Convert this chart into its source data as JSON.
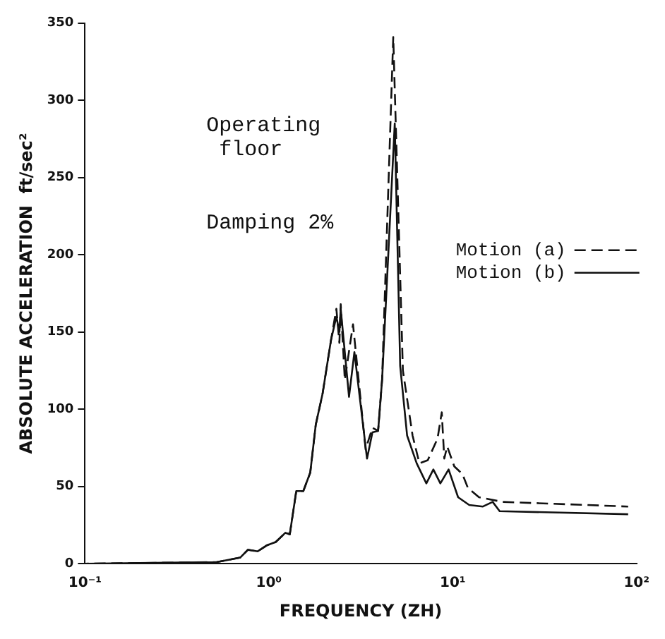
{
  "chart_data": {
    "type": "line",
    "xlabel": "FREQUENCY (ZH)",
    "ylabel": "ABSOLUTE ACCELERATION  ft/sec²",
    "annotations": [
      "Operating floor",
      "Damping 2%"
    ],
    "log": "x",
    "grid": false,
    "legend": "right",
    "marker": "none",
    "xlim": [
      0.1,
      100
    ],
    "xticks": [
      {
        "value": 0.1,
        "label": "10⁻¹"
      },
      {
        "value": 1,
        "label": "10⁰"
      },
      {
        "value": 10,
        "label": "10¹"
      },
      {
        "value": 100,
        "label": "10²"
      }
    ],
    "ylim": [
      0,
      350
    ],
    "yticks": [
      0,
      50,
      100,
      150,
      200,
      250,
      300,
      350
    ],
    "series": [
      {
        "name": "Motion (a)",
        "color": "#111111",
        "line_style": "dashed",
        "x": [
          0.1,
          0.52,
          0.7,
          0.77,
          0.87,
          0.98,
          1.09,
          1.23,
          1.3,
          1.41,
          1.54,
          1.68,
          1.8,
          1.96,
          2.07,
          2.18,
          2.33,
          2.42,
          2.46,
          2.59,
          2.87,
          3.36,
          3.66,
          3.93,
          4.13,
          4.75,
          5.36,
          6.05,
          6.59,
          7.32,
          8.27,
          8.72,
          9.0,
          9.33,
          10.2,
          11.3,
          12.1,
          13.9,
          18.7,
          90
        ],
        "values": [
          0,
          1,
          4,
          9,
          8,
          12,
          14,
          20,
          19,
          47,
          47,
          59,
          90,
          110,
          128,
          145,
          165,
          143,
          168,
          119,
          155,
          74,
          88,
          86,
          119,
          341,
          125,
          83,
          65,
          67,
          81,
          98,
          68,
          76,
          63,
          58,
          49,
          43,
          40,
          37
        ]
      },
      {
        "name": "Motion (b)",
        "color": "#111111",
        "line_style": "solid",
        "x": [
          0.1,
          0.52,
          0.7,
          0.77,
          0.87,
          0.98,
          1.09,
          1.23,
          1.3,
          1.41,
          1.54,
          1.68,
          1.8,
          1.96,
          2.07,
          2.18,
          2.33,
          2.42,
          2.46,
          2.73,
          2.92,
          3.42,
          3.66,
          3.93,
          4.13,
          4.84,
          5.18,
          5.65,
          6.37,
          7.19,
          7.85,
          8.57,
          9.5,
          10.7,
          12.3,
          14.6,
          16.5,
          18.0,
          90
        ],
        "values": [
          0,
          1,
          4,
          9,
          8,
          12,
          14,
          20,
          19,
          47,
          47,
          59,
          90,
          110,
          128,
          145,
          160,
          150,
          165,
          108,
          137,
          68,
          85,
          86,
          119,
          285,
          128,
          83,
          65,
          52,
          61,
          52,
          61,
          43,
          38,
          37,
          40,
          34,
          32
        ]
      }
    ]
  }
}
